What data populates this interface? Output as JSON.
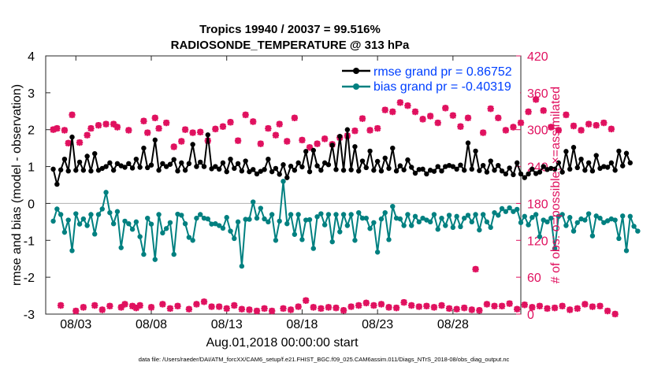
{
  "chart_data": {
    "type": "line",
    "title": [
      "Tropics 19940 / 20037 = 99.516%",
      "RADIOSONDE_TEMPERATURE @ 313 hPa"
    ],
    "xlabel": "Aug.01,2018 00:00:00 start",
    "ylabel_left": "rmse and bias (model - observation)",
    "ylabel_right": "# of obs: o=possible; ×=assimilated",
    "ylim_left": [
      -3,
      4
    ],
    "ylim_right": [
      0,
      420
    ],
    "left_ticks": [
      "-3",
      "-2",
      "-1",
      "0",
      "1",
      "2",
      "3",
      "4"
    ],
    "right_ticks": [
      "0",
      "60",
      "120",
      "180",
      "240",
      "300",
      "360",
      "420"
    ],
    "x_range_days": [
      0.5,
      32
    ],
    "x_ticks": [
      {
        "day": 2.5,
        "label": "08/03"
      },
      {
        "day": 7.5,
        "label": "08/08"
      },
      {
        "day": 12.5,
        "label": "08/13"
      },
      {
        "day": 17.5,
        "label": "08/18"
      },
      {
        "day": 22.5,
        "label": "08/23"
      },
      {
        "day": 27.5,
        "label": "08/28"
      }
    ],
    "zero_line": true,
    "series": [
      {
        "name": "rmse grand pr = 0.86752",
        "axis": "left",
        "color": "#000000",
        "values": [
          0.93,
          0.52,
          0.91,
          1.2,
          0.88,
          1.8,
          0.9,
          1.12,
          0.9,
          1.28,
          0.88,
          1.35,
          0.9,
          0.95,
          1.0,
          1.1,
          0.9,
          1.08,
          1.02,
          0.98,
          1.08,
          0.96,
          1.2,
          0.98,
          1.5,
          0.97,
          1.04,
          1.72,
          0.9,
          1.08,
          1.0,
          1.06,
          1.19,
          0.88,
          1.1,
          0.9,
          1.08,
          1.6,
          1.0,
          1.12,
          1.0,
          1.86,
          0.94,
          1.0,
          0.93,
          1.1,
          0.86,
          1.2,
          0.95,
          1.08,
          0.88,
          1.15,
          0.86,
          0.92,
          0.8,
          0.87,
          0.92,
          1.2,
          0.86,
          0.95,
          0.79,
          1.05,
          0.7,
          1.01,
          0.9,
          1.1,
          0.99,
          1.41,
          0.86,
          1.44,
          1.02,
          0.9,
          1.1,
          1.05,
          1.58,
          0.92,
          1.82,
          0.9,
          2.0,
          0.91,
          1.54,
          0.88,
          1.15,
          0.97,
          1.42,
          0.9,
          1.14,
          0.88,
          1.23,
          0.95,
          1.5,
          0.88,
          1.02,
          0.91,
          1.18,
          0.98,
          0.82,
          0.92,
          0.93,
          0.8,
          0.9,
          0.87,
          1.0,
          0.88,
          1.0,
          1.03,
          1.0,
          0.93,
          1.04,
          0.9,
          1.64,
          0.93,
          1.42,
          0.89,
          1.03,
          0.85,
          1.15,
          0.9,
          1.03,
          0.88,
          0.8,
          0.96,
          0.78,
          1.1,
          0.8,
          0.7,
          0.8,
          0.93,
          0.81,
          0.85,
          1.0,
          0.92,
          0.95,
          0.93,
          1.1,
          0.85,
          1.41,
          0.93,
          1.52,
          0.97,
          1.2,
          0.9,
          1.1,
          0.88,
          1.3,
          0.95,
          1.0,
          0.98,
          1.1,
          0.9,
          1.42,
          1.02,
          1.36,
          1.1
        ]
      },
      {
        "name": "bias grand pr = -0.40319",
        "axis": "left",
        "color": "#008080",
        "values": [
          -0.48,
          -0.15,
          -0.3,
          -0.78,
          -0.45,
          -1.28,
          -0.28,
          -0.56,
          -0.42,
          -0.6,
          -0.3,
          -0.83,
          -0.3,
          -0.15,
          0.3,
          -0.25,
          -0.55,
          -0.22,
          -1.2,
          -0.48,
          -0.55,
          -0.7,
          -0.5,
          -0.9,
          -1.38,
          -0.4,
          -0.56,
          -1.52,
          -0.3,
          -0.8,
          -0.68,
          -0.52,
          -1.38,
          -0.29,
          -0.32,
          -0.55,
          -0.92,
          -1.0,
          -0.4,
          -0.3,
          -0.4,
          -0.42,
          -0.56,
          -0.55,
          -0.6,
          -0.67,
          -0.38,
          -0.75,
          -0.95,
          -0.5,
          -1.7,
          -0.43,
          -0.43,
          0.04,
          -0.4,
          -0.13,
          -0.42,
          -0.5,
          -0.3,
          -1.0,
          -0.48,
          0.6,
          -0.55,
          -0.3,
          -0.84,
          -0.3,
          -0.98,
          -0.45,
          -0.44,
          -1.22,
          -0.36,
          -0.28,
          -0.58,
          -0.3,
          -1.04,
          -0.3,
          -0.77,
          -0.3,
          -0.6,
          -0.3,
          -1.0,
          -0.25,
          -0.4,
          -0.4,
          -0.68,
          -0.52,
          -1.32,
          -0.42,
          -0.25,
          -0.98,
          -0.08,
          -0.4,
          -0.42,
          -0.6,
          -0.3,
          -0.6,
          -0.35,
          -0.5,
          -0.4,
          -0.45,
          -0.5,
          -0.3,
          -0.7,
          -0.4,
          -0.6,
          -0.32,
          -0.65,
          -0.35,
          -0.63,
          -0.4,
          -0.32,
          -0.5,
          -0.3,
          -0.72,
          -0.3,
          -0.5,
          -0.65,
          -0.25,
          -0.32,
          -0.14,
          -0.22,
          -0.12,
          -0.22,
          -0.16,
          -0.52,
          -0.35,
          -0.58,
          -0.38,
          -0.3,
          -0.9,
          -0.45,
          -0.5,
          -0.4,
          -1.22,
          -0.35,
          -0.3,
          -0.6,
          -0.38,
          -0.75,
          -0.52,
          -0.42,
          -0.45,
          -0.28,
          -0.88,
          -0.34,
          -0.4,
          -0.52,
          -0.47,
          -0.42,
          -0.45,
          -0.95,
          -0.34,
          -1.28,
          -0.35,
          -0.62,
          -0.75
        ]
      },
      {
        "name": "possible",
        "axis": "right",
        "marker": "circle",
        "color": "#e0115f",
        "values": [
          301,
          303,
          15,
          300,
          279,
          325,
          6,
          280,
          12,
          292,
          303,
          15,
          308,
          8,
          310,
          14,
          310,
          305,
          12,
          17,
          300,
          14,
          11,
          15,
          315,
          296,
          12,
          320,
          303,
          17,
          312,
          10,
          273,
          14,
          282,
          301,
          9,
          296,
          17,
          297,
          21,
          283,
          13,
          302,
          13,
          306,
          10,
          313,
          15,
          283,
          9,
          325,
          8,
          314,
          6,
          278,
          10,
          303,
          6,
          292,
          310,
          10,
          282,
          8,
          320,
          13,
          284,
          23,
          272,
          12,
          278,
          10,
          286,
          12,
          277,
          11,
          288,
          7,
          291,
          13,
          299,
          15,
          319,
          19,
          300,
          15,
          303,
          17,
          333,
          12,
          330,
          11,
          345,
          20,
          340,
          15,
          330,
          13,
          318,
          14,
          323,
          12,
          312,
          15,
          336,
          10,
          324,
          9,
          306,
          11,
          320,
          8,
          74,
          7,
          296,
          17,
          335,
          14,
          320,
          14,
          300,
          18,
          305,
          9,
          312,
          16,
          330,
          12,
          350,
          14,
          332,
          10,
          305,
          11,
          300,
          14,
          325,
          8,
          307,
          10,
          300,
          17,
          310,
          13,
          308,
          14,
          312,
          6,
          302,
          1
        ]
      },
      {
        "name": "assimilated",
        "axis": "right",
        "marker": "x",
        "color": "#e0115f",
        "values": [
          300,
          302,
          14,
          299,
          278,
          324,
          5,
          279,
          11,
          291,
          302,
          14,
          307,
          7,
          309,
          13,
          309,
          304,
          11,
          16,
          299,
          13,
          10,
          14,
          314,
          295,
          11,
          319,
          302,
          16,
          311,
          9,
          272,
          13,
          281,
          300,
          8,
          295,
          16,
          296,
          20,
          282,
          12,
          301,
          12,
          305,
          9,
          312,
          14,
          282,
          8,
          324,
          7,
          313,
          5,
          277,
          9,
          302,
          5,
          291,
          309,
          9,
          281,
          7,
          319,
          12,
          283,
          22,
          271,
          11,
          277,
          9,
          285,
          11,
          276,
          10,
          287,
          6,
          290,
          12,
          298,
          14,
          318,
          18,
          299,
          14,
          302,
          16,
          332,
          11,
          329,
          10,
          344,
          19,
          339,
          14,
          329,
          12,
          317,
          13,
          322,
          11,
          311,
          14,
          335,
          9,
          323,
          8,
          305,
          10,
          319,
          7,
          73,
          6,
          295,
          16,
          334,
          13,
          319,
          13,
          299,
          17,
          304,
          8,
          311,
          15,
          329,
          11,
          349,
          13,
          331,
          9,
          304,
          10,
          299,
          13,
          324,
          7,
          306,
          9,
          299,
          16,
          309,
          12,
          307,
          13,
          311,
          5,
          301,
          0
        ]
      }
    ],
    "footnote": "data file: /Users/raeder/DAI/ATM_forcXX/CAM6_setup/f.e21.FHIST_BGC.f09_025.CAM6assim.011/Diags_NTrS_2018-08/obs_diag_output.nc"
  },
  "colors": {
    "rmse": "#000000",
    "bias": "#008080",
    "obs": "#e0115f",
    "legend_text": "#0040ff",
    "zero_line": "#b0b0b0"
  }
}
